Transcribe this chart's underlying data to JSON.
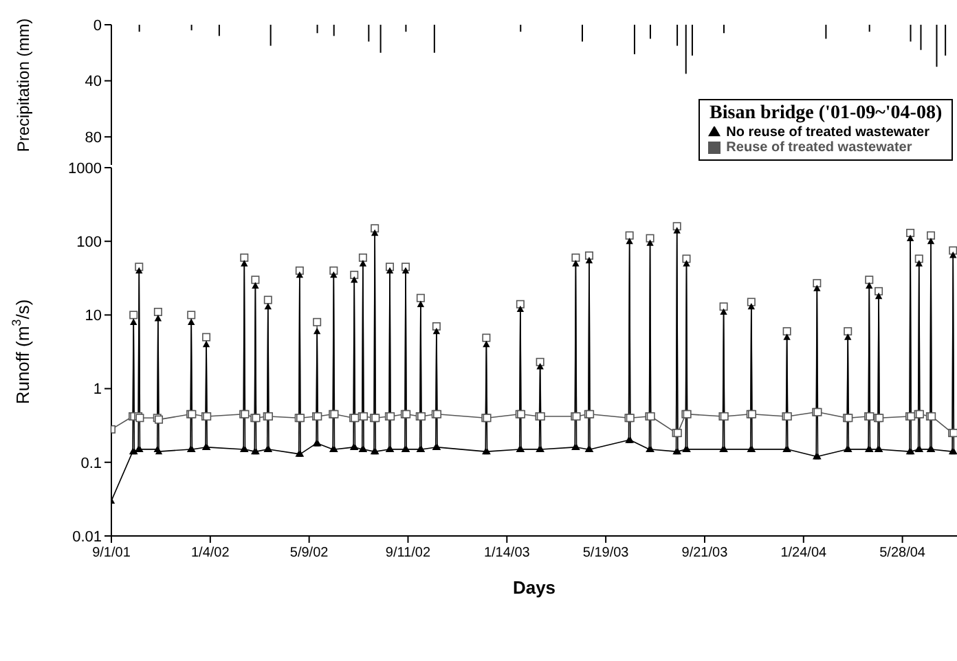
{
  "chart_data": [
    {
      "type": "bar",
      "ylabel": "Precipitation (mm)",
      "ylim": [
        100,
        0
      ],
      "yticks": [
        0,
        40,
        80
      ],
      "xlim": [
        "2001-09-01",
        "2004-08-05"
      ],
      "tick_labels": "y",
      "color": "#000000",
      "x": [
        "2001-10-06",
        "2001-12-11",
        "2002-01-15",
        "2002-03-21",
        "2002-05-19",
        "2002-06-09",
        "2002-07-23",
        "2002-08-07",
        "2002-09-08",
        "2002-10-14",
        "2003-01-31",
        "2003-04-19",
        "2003-06-24",
        "2003-07-14",
        "2003-08-17",
        "2003-08-28",
        "2003-09-05",
        "2003-10-15",
        "2004-02-21",
        "2004-04-16",
        "2004-06-07",
        "2004-06-20",
        "2004-07-10",
        "2004-07-21"
      ],
      "values": [
        5,
        4,
        8,
        15,
        6,
        8,
        12,
        20,
        5,
        20,
        5,
        12,
        21,
        10,
        15,
        35,
        22,
        6,
        10,
        5,
        12,
        18,
        30,
        22
      ]
    },
    {
      "type": "line",
      "xlabel": "Days",
      "ylabel": "Runoff (m$^{3}$/s)",
      "legend_title": "Bisan bridge ('01-09~'04-08)",
      "legend": "top right",
      "log": true,
      "ylim": [
        0.01,
        1000
      ],
      "yticks": [
        0.01,
        0.1,
        1,
        10,
        100,
        1000
      ],
      "xlim": [
        "2001-09-01",
        "2004-08-05"
      ],
      "xticks": [
        {
          "value": "2001-09-01",
          "label": "9/1/01"
        },
        {
          "value": "2002-01-04",
          "label": "1/4/02"
        },
        {
          "value": "2002-05-09",
          "label": "5/9/02"
        },
        {
          "value": "2002-09-11",
          "label": "9/11/02"
        },
        {
          "value": "2003-01-14",
          "label": "1/14/03"
        },
        {
          "value": "2003-05-19",
          "label": "5/19/03"
        },
        {
          "value": "2003-09-21",
          "label": "9/21/03"
        },
        {
          "value": "2004-01-24",
          "label": "1/24/04"
        },
        {
          "value": "2004-05-28",
          "label": "5/28/04"
        }
      ],
      "x": [
        "2001-09-01",
        "2001-09-28",
        "2001-09-29",
        "2001-09-30",
        "2001-10-05",
        "2001-10-06",
        "2001-10-07",
        "2001-10-29",
        "2001-10-30",
        "2001-10-31",
        "2001-12-10",
        "2001-12-11",
        "2001-12-12",
        "2001-12-29",
        "2001-12-30",
        "2001-12-31",
        "2002-02-15",
        "2002-02-16",
        "2002-02-17",
        "2002-03-01",
        "2002-03-02",
        "2002-03-03",
        "2002-03-17",
        "2002-03-18",
        "2002-03-19",
        "2002-04-26",
        "2002-04-27",
        "2002-04-28",
        "2002-05-18",
        "2002-05-19",
        "2002-05-20",
        "2002-06-08",
        "2002-06-09",
        "2002-06-10",
        "2002-07-04",
        "2002-07-05",
        "2002-07-06",
        "2002-07-15",
        "2002-07-16",
        "2002-07-17",
        "2002-07-30",
        "2002-07-31",
        "2002-08-01",
        "2002-08-18",
        "2002-08-19",
        "2002-08-20",
        "2002-09-07",
        "2002-09-08",
        "2002-09-09",
        "2002-09-26",
        "2002-09-27",
        "2002-09-28",
        "2002-10-16",
        "2002-10-17",
        "2002-10-18",
        "2002-12-18",
        "2002-12-19",
        "2002-12-20",
        "2003-01-30",
        "2003-01-31",
        "2003-02-01",
        "2003-02-24",
        "2003-02-25",
        "2003-02-26",
        "2003-04-10",
        "2003-04-11",
        "2003-04-12",
        "2003-04-27",
        "2003-04-28",
        "2003-04-29",
        "2003-06-17",
        "2003-06-18",
        "2003-06-19",
        "2003-07-13",
        "2003-07-14",
        "2003-07-15",
        "2003-08-16",
        "2003-08-17",
        "2003-08-18",
        "2003-08-28",
        "2003-08-29",
        "2003-08-30",
        "2003-10-14",
        "2003-10-15",
        "2003-10-16",
        "2003-11-18",
        "2003-11-19",
        "2003-11-20",
        "2004-01-02",
        "2004-01-03",
        "2004-01-04",
        "2004-02-09",
        "2004-02-10",
        "2004-02-11",
        "2004-03-19",
        "2004-03-20",
        "2004-03-21",
        "2004-04-15",
        "2004-04-16",
        "2004-04-17",
        "2004-04-27",
        "2004-04-28",
        "2004-04-29",
        "2004-06-06",
        "2004-06-07",
        "2004-06-08",
        "2004-06-17",
        "2004-06-18",
        "2004-06-19",
        "2004-07-02",
        "2004-07-03",
        "2004-07-04",
        "2004-07-30",
        "2004-07-31",
        "2004-08-01"
      ],
      "series": [
        {
          "name": "Reuse of treated wastewater",
          "color": "#555555",
          "marker": "square",
          "values": [
            0.28,
            0.42,
            10,
            0.42,
            0.42,
            45,
            0.4,
            0.4,
            11,
            0.38,
            0.45,
            10,
            0.45,
            0.42,
            5,
            0.42,
            0.45,
            60,
            0.45,
            0.4,
            30,
            0.4,
            0.42,
            16,
            0.42,
            0.4,
            40,
            0.4,
            0.42,
            8,
            0.42,
            0.45,
            40,
            0.45,
            0.4,
            35,
            0.4,
            0.42,
            60,
            0.42,
            0.4,
            150,
            0.4,
            0.42,
            45,
            0.42,
            0.45,
            45,
            0.45,
            0.42,
            17,
            0.42,
            0.45,
            7,
            0.45,
            0.4,
            4.9,
            0.4,
            0.45,
            14,
            0.45,
            0.42,
            2.3,
            0.42,
            0.42,
            60,
            0.42,
            0.45,
            64,
            0.45,
            0.4,
            120,
            0.4,
            0.42,
            110,
            0.42,
            0.25,
            160,
            0.25,
            0.45,
            58,
            0.45,
            0.42,
            13,
            0.42,
            0.45,
            15,
            0.45,
            0.42,
            6,
            0.42,
            0.48,
            27,
            0.48,
            0.4,
            6,
            0.4,
            0.42,
            30,
            0.42,
            0.4,
            21,
            0.4,
            0.42,
            130,
            0.42,
            0.45,
            58,
            0.45,
            0.42,
            120,
            0.42,
            0.25,
            75,
            0.25
          ]
        },
        {
          "name": "No reuse of treated wastewater",
          "color": "#000000",
          "marker": "triangle",
          "values": [
            0.03,
            0.14,
            8,
            0.14,
            0.15,
            40,
            0.15,
            0.15,
            9,
            0.14,
            0.15,
            8,
            0.15,
            0.16,
            4,
            0.16,
            0.15,
            50,
            0.15,
            0.14,
            25,
            0.14,
            0.15,
            13,
            0.15,
            0.13,
            35,
            0.13,
            0.18,
            6,
            0.18,
            0.15,
            35,
            0.15,
            0.16,
            30,
            0.16,
            0.15,
            50,
            0.15,
            0.14,
            130,
            0.14,
            0.15,
            40,
            0.15,
            0.15,
            40,
            0.15,
            0.15,
            14,
            0.15,
            0.16,
            6,
            0.16,
            0.14,
            4,
            0.14,
            0.15,
            12,
            0.15,
            0.15,
            2,
            0.15,
            0.16,
            50,
            0.16,
            0.15,
            55,
            0.15,
            0.2,
            100,
            0.2,
            0.15,
            95,
            0.15,
            0.14,
            140,
            0.14,
            0.15,
            50,
            0.15,
            0.15,
            11,
            0.15,
            0.15,
            13,
            0.15,
            0.15,
            5,
            0.15,
            0.12,
            23,
            0.12,
            0.15,
            5,
            0.15,
            0.15,
            25,
            0.15,
            0.15,
            18,
            0.15,
            0.14,
            110,
            0.14,
            0.15,
            50,
            0.15,
            0.15,
            100,
            0.15,
            0.14,
            65,
            0.14
          ]
        }
      ]
    }
  ]
}
